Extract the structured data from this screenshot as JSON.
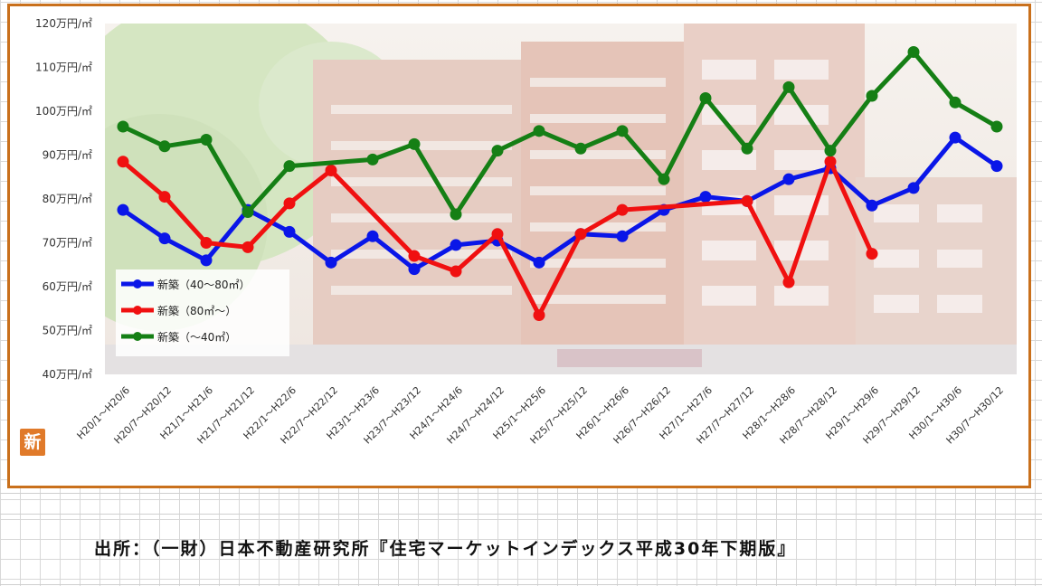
{
  "chart_data": {
    "type": "line",
    "title": "",
    "xlabel": "",
    "ylabel": "",
    "ylim": [
      40,
      120
    ],
    "y_ticks": [
      "40万円/㎡",
      "50万円/㎡",
      "60万円/㎡",
      "70万円/㎡",
      "80万円/㎡",
      "90万円/㎡",
      "100万円/㎡",
      "110万円/㎡",
      "120万円/㎡"
    ],
    "categories": [
      "H20/1～H20/6",
      "H20/7～H20/12",
      "H21/1～H21/6",
      "H21/7～H21/12",
      "H22/1～H22/6",
      "H22/7～H22/12",
      "H23/1～H23/6",
      "H23/7～H23/12",
      "H24/1～H24/6",
      "H24/7～H24/12",
      "H25/1～H25/6",
      "H25/7～H25/12",
      "H26/1～H26/6",
      "H26/7～H26/12",
      "H27/1～H27/6",
      "H27/7～H27/12",
      "H28/1～H28/6",
      "H28/7～H28/12",
      "H29/1～H29/6",
      "H29/7～H29/12",
      "H30/1～H30/6",
      "H30/7～H30/12"
    ],
    "grid": false,
    "legend_position": "bottom-left",
    "background": "apartment building photo",
    "series": [
      {
        "name": "新築（40～80㎡）",
        "color": "#0a16e8",
        "values": [
          77.5,
          71,
          66,
          77.5,
          72.5,
          65.5,
          71.5,
          64,
          69.5,
          70.5,
          65.5,
          72,
          71.5,
          77.5,
          80.5,
          79.5,
          84.5,
          87,
          78.5,
          82.5,
          94,
          87.5
        ]
      },
      {
        "name": "新築（80㎡～）",
        "color": "#f01010",
        "values": [
          88.5,
          80.5,
          70,
          69,
          79,
          86.5,
          null,
          67,
          63.5,
          72,
          53.5,
          72,
          77.5,
          null,
          null,
          79.5,
          61,
          88.5,
          67.5,
          null,
          null,
          null
        ]
      },
      {
        "name": "新築（～40㎡）",
        "color": "#157f15",
        "values": [
          96.5,
          92,
          93.5,
          77,
          87.5,
          null,
          89,
          92.5,
          76.5,
          91,
          95.5,
          91.5,
          95.5,
          84.5,
          103,
          91.5,
          105.5,
          91,
          103.5,
          113.5,
          102,
          96.5
        ]
      }
    ]
  },
  "badge": {
    "label": "新"
  },
  "footer": {
    "source": "出所：（一財）日本不動産研究所『住宅マーケットインデックス平成30年下期版』"
  },
  "colors": {
    "frame": "#c9701c",
    "badge": "#e07a2a"
  }
}
